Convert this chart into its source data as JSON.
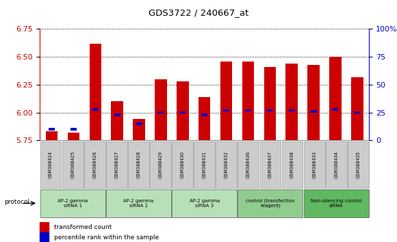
{
  "title": "GDS3722 / 240667_at",
  "samples": [
    "GSM388424",
    "GSM388425",
    "GSM388426",
    "GSM388427",
    "GSM388428",
    "GSM388429",
    "GSM388430",
    "GSM388431",
    "GSM388432",
    "GSM388436",
    "GSM388437",
    "GSM388438",
    "GSM388433",
    "GSM388434",
    "GSM388435"
  ],
  "red_values": [
    5.83,
    5.82,
    6.62,
    6.1,
    5.94,
    6.3,
    6.28,
    6.14,
    6.46,
    6.46,
    6.41,
    6.44,
    6.43,
    6.5,
    6.32
  ],
  "blue_values_pct": [
    10,
    10,
    28,
    23,
    15,
    25,
    25,
    23,
    27,
    27,
    27,
    27,
    26,
    28,
    25
  ],
  "ylim_left": [
    5.75,
    6.75
  ],
  "ylim_right": [
    0,
    100
  ],
  "yticks_left": [
    5.75,
    6.0,
    6.25,
    6.5,
    6.75
  ],
  "yticks_right": [
    0,
    25,
    50,
    75,
    100
  ],
  "groups": [
    {
      "label": "AP-2 gamma\nsiRNA 1",
      "indices": [
        0,
        1,
        2
      ],
      "color": "#b8e0b8"
    },
    {
      "label": "AP-2 gamma\nsiRNA 2",
      "indices": [
        3,
        4,
        5
      ],
      "color": "#b8e0b8"
    },
    {
      "label": "AP-2 gamma\nsiRNA 3",
      "indices": [
        6,
        7,
        8
      ],
      "color": "#b8e0b8"
    },
    {
      "label": "control (transfection\nreagent)",
      "indices": [
        9,
        10,
        11
      ],
      "color": "#90cc90"
    },
    {
      "label": "Non-silencing control\nsiRNA",
      "indices": [
        12,
        13,
        14
      ],
      "color": "#60b860"
    }
  ],
  "bar_color": "#cc0000",
  "blue_color": "#0000cc",
  "bar_width": 0.55,
  "protocol_label": "protocol",
  "legend_red": "transformed count",
  "legend_blue": "percentile rank within the sample",
  "left_axis_color": "#cc0000",
  "right_axis_color": "#0000cc",
  "sample_box_color": "#cccccc",
  "sample_box_edge": "#999999"
}
